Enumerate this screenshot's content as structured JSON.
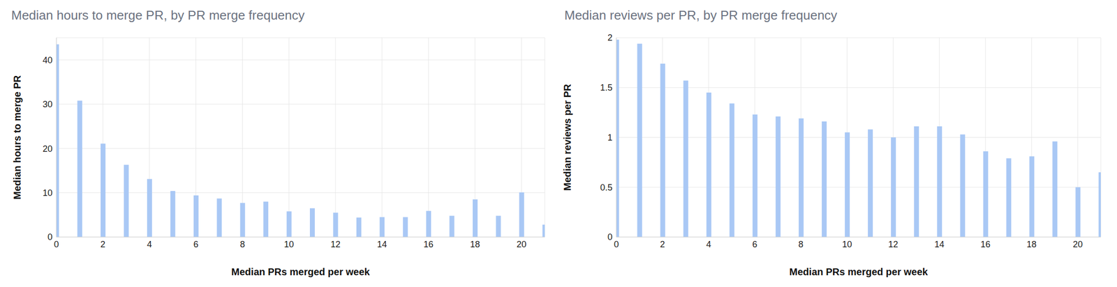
{
  "chart_data": [
    {
      "type": "bar",
      "title": "Median hours to merge PR, by PR merge frequency",
      "x_label": "Median PRs merged per week",
      "y_label": "Median hours to merge PR",
      "x": [
        0,
        1,
        2,
        3,
        4,
        5,
        6,
        7,
        8,
        9,
        10,
        11,
        12,
        13,
        14,
        15,
        16,
        17,
        18,
        19,
        20,
        21
      ],
      "values": [
        43.5,
        30.8,
        21.1,
        16.3,
        13.1,
        10.4,
        9.4,
        8.7,
        7.7,
        8.0,
        5.8,
        6.5,
        5.5,
        4.4,
        4.5,
        4.5,
        5.9,
        4.8,
        8.5,
        4.8,
        10.1,
        2.8
      ],
      "color": "#a9c8f5",
      "xlim": [
        0,
        21
      ],
      "xticks": [
        0,
        2,
        4,
        6,
        8,
        10,
        12,
        14,
        16,
        18,
        20
      ],
      "ylim": [
        0,
        45
      ],
      "yticks": [
        0,
        10,
        20,
        30,
        40
      ],
      "grid": true
    },
    {
      "type": "bar",
      "title": "Median reviews per PR, by PR merge frequency",
      "x_label": "Median PRs merged per week",
      "y_label": "Median reviews per PR",
      "x": [
        0,
        1,
        2,
        3,
        4,
        5,
        6,
        7,
        8,
        9,
        10,
        11,
        12,
        13,
        14,
        15,
        16,
        17,
        18,
        19,
        20,
        21
      ],
      "values": [
        1.98,
        1.94,
        1.74,
        1.57,
        1.45,
        1.34,
        1.23,
        1.21,
        1.19,
        1.16,
        1.05,
        1.08,
        1.0,
        1.11,
        1.11,
        1.03,
        0.86,
        0.79,
        0.81,
        0.96,
        0.5,
        0.65
      ],
      "color": "#a9c8f5",
      "xlim": [
        0,
        21
      ],
      "xticks": [
        0,
        2,
        4,
        6,
        8,
        10,
        12,
        14,
        16,
        18,
        20
      ],
      "ylim": [
        0,
        2
      ],
      "yticks": [
        0,
        0.5,
        1,
        1.5,
        2
      ],
      "grid": true
    }
  ]
}
